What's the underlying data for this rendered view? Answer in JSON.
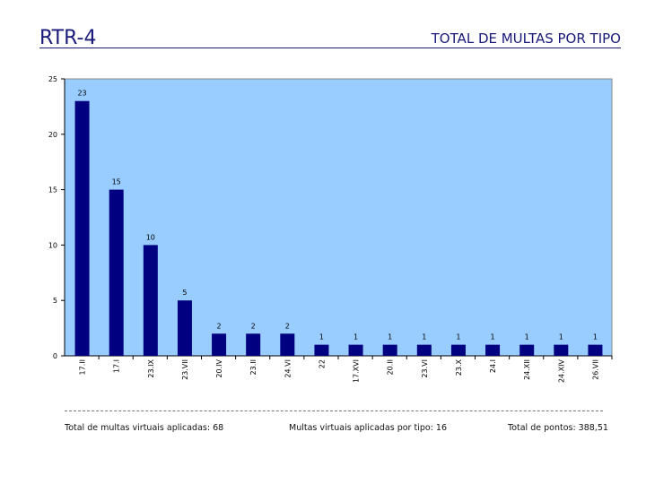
{
  "header": {
    "title": "RTR-4",
    "subtitle": "TOTAL DE MULTAS POR TIPO"
  },
  "chart_data": {
    "type": "bar",
    "title": "TOTAL DE MULTAS POR TIPO",
    "xlabel": "",
    "ylabel": "",
    "ylim": [
      0,
      25
    ],
    "yticks": [
      0,
      5,
      10,
      15,
      20,
      25
    ],
    "categories": [
      "17.II",
      "17.I",
      "23.IX",
      "23.VII",
      "20.IV",
      "23.II",
      "24.VI",
      "22",
      "17.XVI",
      "20.II",
      "23.VI",
      "23.X",
      "24.I",
      "24.XII",
      "24.XIV",
      "26.VII"
    ],
    "values": [
      23,
      15,
      10,
      5,
      2,
      2,
      2,
      1,
      1,
      1,
      1,
      1,
      1,
      1,
      1,
      1
    ],
    "colors": {
      "plot_background": "#99ccff",
      "bar_fill": "#000080"
    }
  },
  "footer": {
    "total_label": "Total de multas virtuais aplicadas: 68",
    "per_type_label": "Multas virtuais aplicadas por tipo: 16",
    "points_label": "Total de pontos: 388,51"
  }
}
